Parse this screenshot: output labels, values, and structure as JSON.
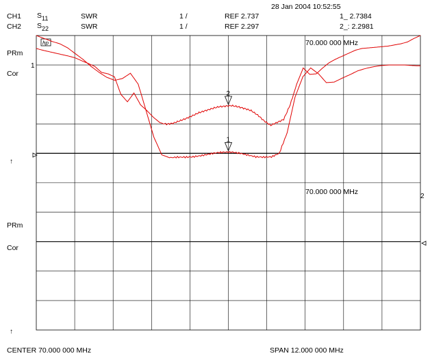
{
  "header": {
    "datetime": "28 Jan 2004  10:52:55",
    "ch1": {
      "label": "CH1",
      "param": "S",
      "param_sub": "11",
      "format": "SWR",
      "scale": "1 /",
      "ref": "REF 2.737",
      "marker_readout": "1_  2.7384"
    },
    "ch2": {
      "label": "CH2",
      "param": "S",
      "param_sub": "22",
      "format": "SWR",
      "scale": "1 /",
      "ref": "REF 2.297",
      "marker_readout": "2_: 2.2981"
    }
  },
  "side_labels": {
    "prm": "PRm",
    "cor": "Cor",
    "hp_logo": "hp"
  },
  "footer": {
    "center": "CENTER  70.000 000 MHz",
    "span": "SPAN  12.000 000 MHz"
  },
  "colors": {
    "trace": "#e00000",
    "grid": "#000000",
    "background": "#ffffff"
  },
  "chart_data": {
    "type": "line",
    "x_axis": {
      "center_mhz": 70.0,
      "span_mhz": 12.0,
      "xlim": [
        64.0,
        76.0
      ],
      "divisions": 10
    },
    "grid": true,
    "channels": [
      {
        "name": "S11",
        "marker": {
          "id": "1",
          "x": 70.0,
          "readout": "70.000 000 MHz"
        },
        "y": [
          0.0,
          0.1,
          0.2,
          0.28,
          0.42,
          0.62,
          0.82,
          1.05,
          1.25,
          1.42,
          1.52,
          1.46,
          1.28,
          1.65,
          2.55,
          3.45,
          4.05,
          4.15,
          4.13,
          4.13,
          4.12,
          4.08,
          4.03,
          3.98,
          3.96,
          3.96,
          4.0,
          4.06,
          4.12,
          4.13,
          4.12,
          4.0,
          3.3,
          2.1,
          1.4,
          1.1,
          1.3,
          1.6,
          1.58,
          1.45,
          1.33,
          1.2,
          1.12,
          1.06,
          1.02,
          1.0,
          1.0,
          1.0,
          1.02,
          1.03
        ]
      },
      {
        "name": "S22",
        "marker": {
          "id": "2",
          "x": 70.0,
          "readout": "70.000 000 MHz"
        },
        "y": [
          0.44,
          0.5,
          0.55,
          0.6,
          0.65,
          0.7,
          0.76,
          0.86,
          0.95,
          1.05,
          1.25,
          1.3,
          1.4,
          2.0,
          2.25,
          1.95,
          2.35,
          2.55,
          2.78,
          2.96,
          3.01,
          2.98,
          2.9,
          2.82,
          2.72,
          2.62,
          2.55,
          2.48,
          2.42,
          2.4,
          2.38,
          2.42,
          2.48,
          2.55,
          2.7,
          2.9,
          3.05,
          2.95,
          2.85,
          2.35,
          1.65,
          1.1,
          1.32,
          1.3,
          1.1,
          0.92,
          0.8,
          0.7,
          0.6,
          0.5,
          0.44,
          0.42,
          0.4,
          0.38,
          0.36,
          0.32,
          0.28,
          0.22,
          0.1,
          0.0
        ]
      }
    ]
  }
}
